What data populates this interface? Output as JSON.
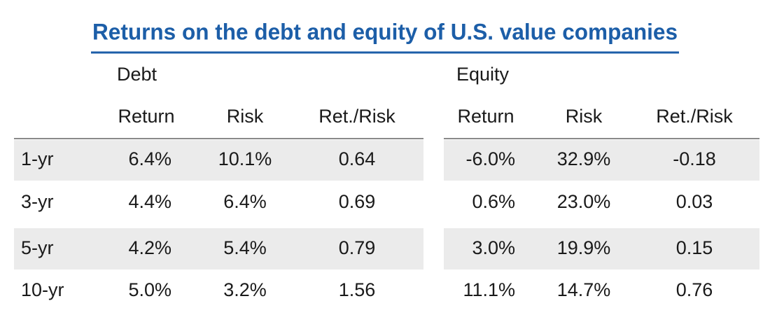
{
  "title": "Returns on the debt and equity of U.S. value companies",
  "table": {
    "groups": [
      {
        "name": "Debt",
        "columns": [
          "Return",
          "Risk",
          "Ret./Risk"
        ]
      },
      {
        "name": "Equity",
        "columns": [
          "Return",
          "Risk",
          "Ret./Risk"
        ]
      }
    ],
    "rows": [
      {
        "label": "1-yr",
        "cells": [
          "6.4%",
          "10.1%",
          "0.64",
          "-6.0%",
          "32.9%",
          "-0.18"
        ]
      },
      {
        "label": "3-yr",
        "cells": [
          "4.4%",
          "6.4%",
          "0.69",
          "0.6%",
          "23.0%",
          "0.03"
        ]
      },
      {
        "label": "5-yr",
        "cells": [
          "4.2%",
          "5.4%",
          "0.79",
          "3.0%",
          "19.9%",
          "0.15"
        ]
      },
      {
        "label": "10-yr",
        "cells": [
          "5.0%",
          "3.2%",
          "1.56",
          "11.1%",
          "14.7%",
          "0.76"
        ]
      }
    ]
  }
}
